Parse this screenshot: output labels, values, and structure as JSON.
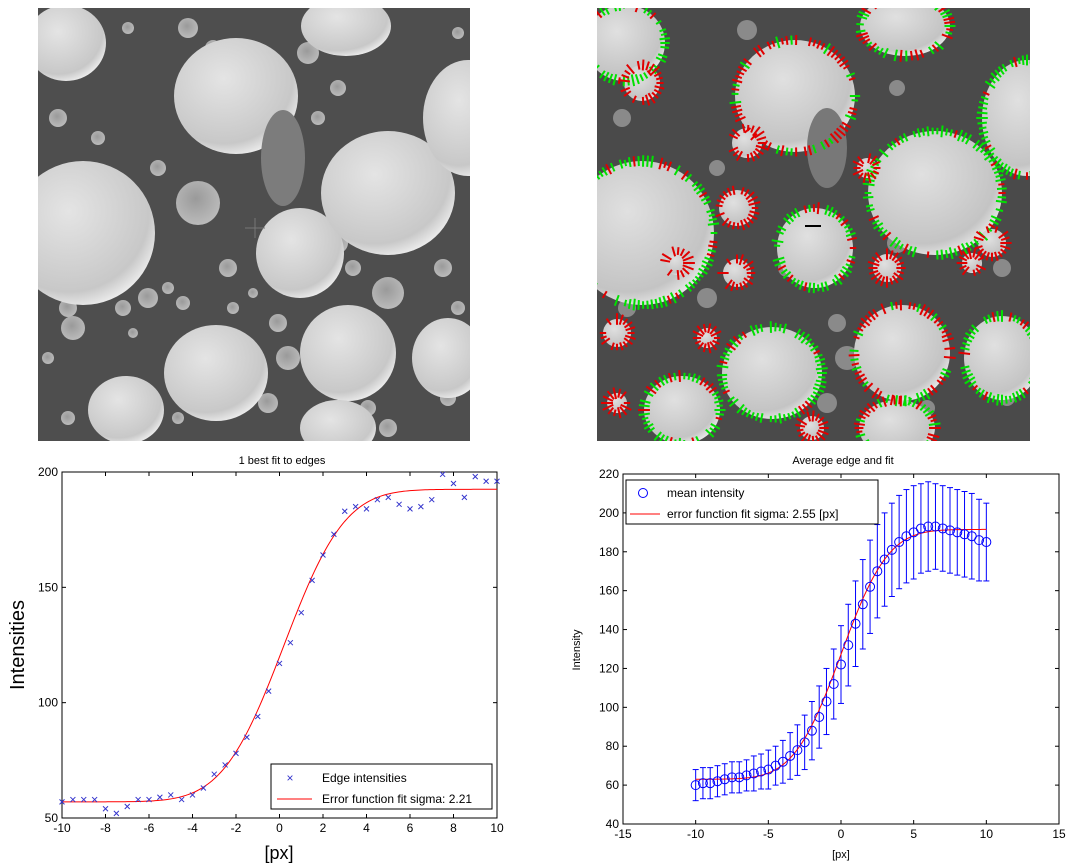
{
  "images": {
    "left": {
      "kind": "sem-micrograph-with-crosshair"
    },
    "right": {
      "kind": "sem-micrograph-with-edge-overlays",
      "overlay_colors": [
        "#00e000",
        "#e00000",
        "#000000"
      ]
    }
  },
  "chart_data": [
    {
      "type": "scatter",
      "title": "1 best fit to edges",
      "xlabel": "[px]",
      "ylabel": "Intensities",
      "xlim": [
        -10,
        10
      ],
      "ylim": [
        50,
        200
      ],
      "xticks": [
        "-10",
        "-8",
        "-6",
        "-4",
        "-2",
        "0",
        "2",
        "4",
        "6",
        "8",
        "10"
      ],
      "yticks": [
        "50",
        "100",
        "150",
        "200"
      ],
      "grid": false,
      "legend_position": "bottom-right",
      "series": [
        {
          "name": "Edge intensities",
          "marker": "x",
          "color": "#3333cc",
          "x": [
            -10,
            -9.5,
            -9,
            -8.5,
            -8,
            -7.5,
            -7,
            -6.5,
            -6,
            -5.5,
            -5,
            -4.5,
            -4,
            -3.5,
            -3,
            -2.5,
            -2,
            -1.5,
            -1,
            -0.5,
            0,
            0.5,
            1,
            1.5,
            2,
            2.5,
            3,
            3.5,
            4,
            4.5,
            5,
            5.5,
            6,
            6.5,
            7,
            7.5,
            8,
            8.5,
            9,
            9.5,
            10
          ],
          "y": [
            57,
            58,
            58,
            58,
            54,
            52,
            55,
            58,
            58,
            59,
            60,
            58,
            60,
            63,
            69,
            73,
            78,
            85,
            94,
            105,
            117,
            126,
            139,
            153,
            164,
            173,
            183,
            185,
            184,
            188,
            189,
            186,
            184,
            185,
            188,
            199,
            195,
            189,
            198,
            196,
            196
          ]
        },
        {
          "name": "Error function fit sigma: 2.21",
          "marker": "line",
          "color": "#ff0000",
          "fit": {
            "low": 57,
            "high": 192.5,
            "center": 0.2,
            "sigma": 2.21
          }
        }
      ]
    },
    {
      "type": "line",
      "title": "Average edge and fit",
      "xlabel": "[px]",
      "ylabel": "Intensity",
      "xlim": [
        -15,
        15
      ],
      "ylim": [
        40,
        220
      ],
      "xticks": [
        "-15",
        "-10",
        "-5",
        "0",
        "5",
        "10",
        "15"
      ],
      "yticks": [
        "40",
        "60",
        "80",
        "100",
        "120",
        "140",
        "160",
        "180",
        "200",
        "220"
      ],
      "grid": false,
      "legend_position": "top-left",
      "series": [
        {
          "name": "mean intensity",
          "marker": "o",
          "color": "#0000ff",
          "x": [
            -10,
            -9.5,
            -9,
            -8.5,
            -8,
            -7.5,
            -7,
            -6.5,
            -6,
            -5.5,
            -5,
            -4.5,
            -4,
            -3.5,
            -3,
            -2.5,
            -2,
            -1.5,
            -1,
            -0.5,
            0,
            0.5,
            1,
            1.5,
            2,
            2.5,
            3,
            3.5,
            4,
            4.5,
            5,
            5.5,
            6,
            6.5,
            7,
            7.5,
            8,
            8.5,
            9,
            9.5,
            10
          ],
          "y": [
            60,
            61,
            61,
            62,
            63,
            64,
            64,
            65,
            66,
            67,
            68,
            70,
            72,
            75,
            78,
            82,
            88,
            95,
            103,
            112,
            122,
            132,
            143,
            153,
            162,
            170,
            176,
            181,
            185,
            188,
            190,
            192,
            193,
            193,
            192,
            191,
            190,
            189,
            188,
            186,
            185
          ],
          "err": [
            8,
            8,
            8,
            8,
            8,
            8,
            8,
            8,
            9,
            9,
            10,
            10,
            11,
            12,
            13,
            14,
            15,
            16,
            17,
            18,
            20,
            21,
            22,
            23,
            24,
            24,
            24,
            24,
            24,
            24,
            24,
            23,
            23,
            22,
            22,
            22,
            22,
            22,
            22,
            21,
            20
          ]
        },
        {
          "name": "error function fit sigma: 2.55 [px]",
          "marker": "line",
          "color": "#ff0000",
          "fit": {
            "low": 63,
            "high": 191.5,
            "center": 0,
            "sigma": 2.55,
            "xrange": [
              -10,
              10
            ]
          }
        }
      ]
    }
  ]
}
